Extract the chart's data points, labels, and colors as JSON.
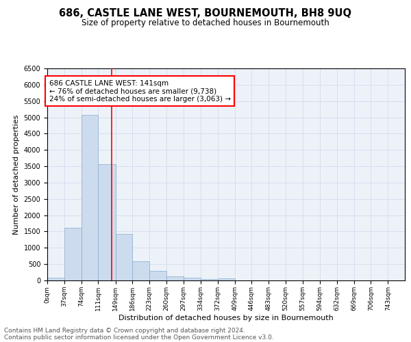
{
  "title": "686, CASTLE LANE WEST, BOURNEMOUTH, BH8 9UQ",
  "subtitle": "Size of property relative to detached houses in Bournemouth",
  "xlabel": "Distribution of detached houses by size in Bournemouth",
  "ylabel": "Number of detached properties",
  "bar_color": "#ccdcee",
  "bar_edge_color": "#88aacc",
  "bin_edges": [
    0,
    37,
    74,
    111,
    149,
    186,
    223,
    260,
    297,
    334,
    372,
    409,
    446,
    483,
    520,
    557,
    594,
    632,
    669,
    706,
    743
  ],
  "bar_heights": [
    75,
    1620,
    5080,
    3570,
    1420,
    580,
    290,
    130,
    80,
    40,
    60,
    0,
    0,
    0,
    0,
    0,
    0,
    0,
    0,
    0
  ],
  "tick_labels": [
    "0sqm",
    "37sqm",
    "74sqm",
    "111sqm",
    "149sqm",
    "186sqm",
    "223sqm",
    "260sqm",
    "297sqm",
    "334sqm",
    "372sqm",
    "409sqm",
    "446sqm",
    "483sqm",
    "520sqm",
    "557sqm",
    "594sqm",
    "632sqm",
    "669sqm",
    "706sqm",
    "743sqm"
  ],
  "ylim": [
    0,
    6500
  ],
  "xlim_max": 780,
  "red_line_x": 141,
  "annotation_text": "686 CASTLE LANE WEST: 141sqm\n← 76% of detached houses are smaller (9,738)\n24% of semi-detached houses are larger (3,063) →",
  "footnote1": "Contains HM Land Registry data © Crown copyright and database right 2024.",
  "footnote2": "Contains public sector information licensed under the Open Government Licence v3.0.",
  "grid_color": "#ccd8ec",
  "background_color": "#edf2f9",
  "title_fontsize": 10.5,
  "subtitle_fontsize": 8.5,
  "annotation_fontsize": 7.5,
  "footnote_fontsize": 6.5,
  "ylabel_fontsize": 8,
  "xlabel_fontsize": 8,
  "ytick_fontsize": 7,
  "xtick_fontsize": 6.5
}
